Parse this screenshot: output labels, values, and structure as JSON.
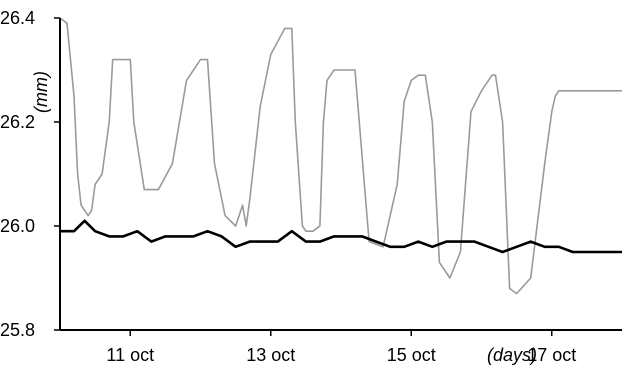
{
  "chart_data": {
    "type": "line",
    "ylabel": "(mm)",
    "xlabel": "(days)",
    "ylim": [
      25.8,
      26.4
    ],
    "yticks": [
      {
        "value": 25.8,
        "label": "25.8"
      },
      {
        "value": 26.0,
        "label": "26.0"
      },
      {
        "value": 26.2,
        "label": "26.2"
      },
      {
        "value": 26.4,
        "label": "26.4"
      }
    ],
    "xlim": [
      10.0,
      18.0
    ],
    "xticks": [
      {
        "value": 11,
        "label": "11 oct"
      },
      {
        "value": 13,
        "label": "13 oct"
      },
      {
        "value": 15,
        "label": "15 oct"
      },
      {
        "value": 17,
        "label": "17 oct"
      }
    ],
    "grid": false,
    "legend": "none",
    "series": [
      {
        "color": "#9a9a9a",
        "x": [
          10.0,
          10.1,
          10.2,
          10.25,
          10.3,
          10.4,
          10.45,
          10.5,
          10.6,
          10.7,
          10.75,
          10.85,
          10.9,
          10.95,
          11.0,
          11.05,
          11.2,
          11.4,
          11.6,
          11.8,
          11.95,
          12.0,
          12.05,
          12.1,
          12.2,
          12.35,
          12.5,
          12.6,
          12.65,
          12.7,
          12.85,
          13.0,
          13.2,
          13.3,
          13.35,
          13.45,
          13.5,
          13.6,
          13.7,
          13.75,
          13.8,
          13.9,
          14.0,
          14.2,
          14.4,
          14.6,
          14.8,
          14.9,
          15.0,
          15.1,
          15.15,
          15.2,
          15.3,
          15.4,
          15.55,
          15.7,
          15.85,
          16.0,
          16.1,
          16.15,
          16.2,
          16.3,
          16.4,
          16.5,
          16.7,
          16.9,
          17.0,
          17.05,
          17.1,
          17.2,
          17.3,
          17.4,
          17.6,
          17.8,
          18.0
        ],
        "y": [
          26.4,
          26.39,
          26.25,
          26.1,
          26.04,
          26.02,
          26.03,
          26.08,
          26.1,
          26.2,
          26.32,
          26.32,
          26.32,
          26.32,
          26.32,
          26.2,
          26.07,
          26.07,
          26.12,
          26.28,
          26.31,
          26.32,
          26.32,
          26.32,
          26.12,
          26.02,
          26.0,
          26.04,
          26.0,
          26.05,
          26.23,
          26.33,
          26.38,
          26.38,
          26.2,
          26.0,
          25.99,
          25.99,
          26.0,
          26.2,
          26.28,
          26.3,
          26.3,
          26.3,
          25.97,
          25.96,
          26.08,
          26.24,
          26.28,
          26.29,
          26.29,
          26.29,
          26.2,
          25.93,
          25.9,
          25.95,
          26.22,
          26.26,
          26.28,
          26.29,
          26.29,
          26.2,
          25.88,
          25.87,
          25.9,
          26.12,
          26.22,
          26.25,
          26.26,
          26.26,
          26.26,
          26.26,
          26.26,
          26.26,
          26.26
        ]
      },
      {
        "color": "#000000",
        "x": [
          10.0,
          10.2,
          10.35,
          10.5,
          10.7,
          10.9,
          11.1,
          11.3,
          11.5,
          11.7,
          11.9,
          12.1,
          12.3,
          12.5,
          12.7,
          12.9,
          13.1,
          13.3,
          13.5,
          13.7,
          13.9,
          14.1,
          14.3,
          14.5,
          14.7,
          14.9,
          15.1,
          15.3,
          15.5,
          15.7,
          15.9,
          16.1,
          16.3,
          16.5,
          16.7,
          16.9,
          17.1,
          17.3,
          17.5,
          17.7,
          17.9,
          18.0
        ],
        "y": [
          25.99,
          25.99,
          26.01,
          25.99,
          25.98,
          25.98,
          25.99,
          25.97,
          25.98,
          25.98,
          25.98,
          25.99,
          25.98,
          25.96,
          25.97,
          25.97,
          25.97,
          25.99,
          25.97,
          25.97,
          25.98,
          25.98,
          25.98,
          25.97,
          25.96,
          25.96,
          25.97,
          25.96,
          25.97,
          25.97,
          25.97,
          25.96,
          25.95,
          25.96,
          25.97,
          25.96,
          25.96,
          25.95,
          25.95,
          25.95,
          25.95,
          25.95
        ]
      }
    ]
  }
}
